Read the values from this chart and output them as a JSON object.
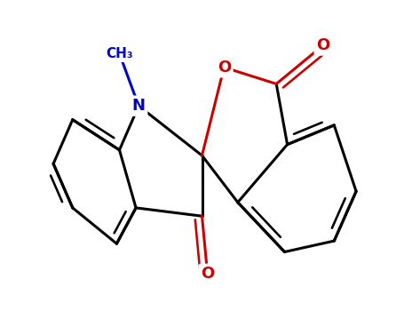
{
  "background_color": "#ffffff",
  "bond_color": "#000000",
  "nitrogen_color": "#0000cc",
  "oxygen_color": "#cc0000",
  "bond_width": 2.2,
  "figsize": [
    4.55,
    3.5
  ],
  "dpi": 100,
  "xlim": [
    -3.5,
    3.5
  ],
  "ylim": [
    -2.8,
    2.8
  ]
}
